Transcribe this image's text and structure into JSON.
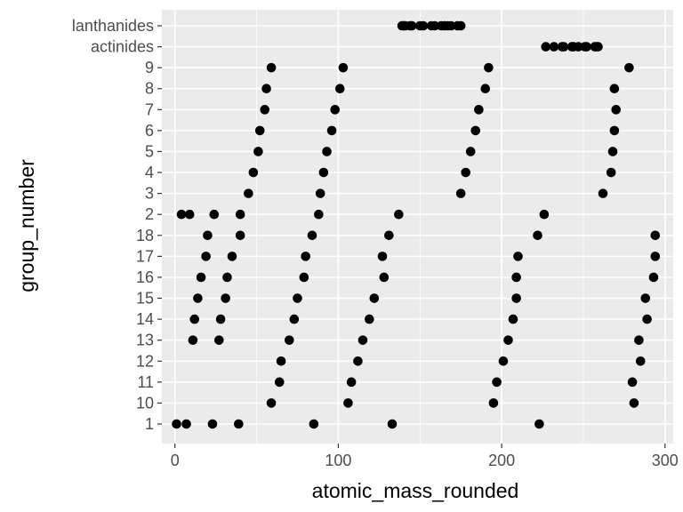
{
  "chart_data": {
    "type": "scatter",
    "xlabel": "atomic_mass_rounded",
    "ylabel": "group_number",
    "xlim": [
      -8,
      305
    ],
    "x_ticks": [
      0,
      100,
      200,
      300
    ],
    "x_tick_labels": [
      "0",
      "100",
      "200",
      "300"
    ],
    "x_minor": [
      50,
      150,
      250
    ],
    "categories": [
      "1",
      "10",
      "11",
      "12",
      "13",
      "14",
      "15",
      "16",
      "17",
      "18",
      "2",
      "3",
      "4",
      "5",
      "6",
      "7",
      "8",
      "9",
      "actinides",
      "lanthanides"
    ],
    "grid": true,
    "points": [
      {
        "x": 1,
        "y": "1"
      },
      {
        "x": 7,
        "y": "1"
      },
      {
        "x": 23,
        "y": "1"
      },
      {
        "x": 39,
        "y": "1"
      },
      {
        "x": 85,
        "y": "1"
      },
      {
        "x": 133,
        "y": "1"
      },
      {
        "x": 223,
        "y": "1"
      },
      {
        "x": 4,
        "y": "2"
      },
      {
        "x": 9,
        "y": "2"
      },
      {
        "x": 24,
        "y": "2"
      },
      {
        "x": 40,
        "y": "2"
      },
      {
        "x": 88,
        "y": "2"
      },
      {
        "x": 137,
        "y": "2"
      },
      {
        "x": 226,
        "y": "2"
      },
      {
        "x": 45,
        "y": "3"
      },
      {
        "x": 89,
        "y": "3"
      },
      {
        "x": 175,
        "y": "3"
      },
      {
        "x": 262,
        "y": "3"
      },
      {
        "x": 48,
        "y": "4"
      },
      {
        "x": 91,
        "y": "4"
      },
      {
        "x": 178,
        "y": "4"
      },
      {
        "x": 267,
        "y": "4"
      },
      {
        "x": 51,
        "y": "5"
      },
      {
        "x": 93,
        "y": "5"
      },
      {
        "x": 181,
        "y": "5"
      },
      {
        "x": 268,
        "y": "5"
      },
      {
        "x": 52,
        "y": "6"
      },
      {
        "x": 96,
        "y": "6"
      },
      {
        "x": 184,
        "y": "6"
      },
      {
        "x": 269,
        "y": "6"
      },
      {
        "x": 55,
        "y": "7"
      },
      {
        "x": 98,
        "y": "7"
      },
      {
        "x": 186,
        "y": "7"
      },
      {
        "x": 270,
        "y": "7"
      },
      {
        "x": 56,
        "y": "8"
      },
      {
        "x": 101,
        "y": "8"
      },
      {
        "x": 190,
        "y": "8"
      },
      {
        "x": 269,
        "y": "8"
      },
      {
        "x": 59,
        "y": "9"
      },
      {
        "x": 103,
        "y": "9"
      },
      {
        "x": 192,
        "y": "9"
      },
      {
        "x": 278,
        "y": "9"
      },
      {
        "x": 59,
        "y": "10"
      },
      {
        "x": 106,
        "y": "10"
      },
      {
        "x": 195,
        "y": "10"
      },
      {
        "x": 281,
        "y": "10"
      },
      {
        "x": 64,
        "y": "11"
      },
      {
        "x": 108,
        "y": "11"
      },
      {
        "x": 197,
        "y": "11"
      },
      {
        "x": 280,
        "y": "11"
      },
      {
        "x": 65,
        "y": "12"
      },
      {
        "x": 112,
        "y": "12"
      },
      {
        "x": 201,
        "y": "12"
      },
      {
        "x": 285,
        "y": "12"
      },
      {
        "x": 11,
        "y": "13"
      },
      {
        "x": 27,
        "y": "13"
      },
      {
        "x": 70,
        "y": "13"
      },
      {
        "x": 115,
        "y": "13"
      },
      {
        "x": 204,
        "y": "13"
      },
      {
        "x": 284,
        "y": "13"
      },
      {
        "x": 12,
        "y": "14"
      },
      {
        "x": 28,
        "y": "14"
      },
      {
        "x": 73,
        "y": "14"
      },
      {
        "x": 119,
        "y": "14"
      },
      {
        "x": 207,
        "y": "14"
      },
      {
        "x": 289,
        "y": "14"
      },
      {
        "x": 14,
        "y": "15"
      },
      {
        "x": 31,
        "y": "15"
      },
      {
        "x": 75,
        "y": "15"
      },
      {
        "x": 122,
        "y": "15"
      },
      {
        "x": 209,
        "y": "15"
      },
      {
        "x": 288,
        "y": "15"
      },
      {
        "x": 16,
        "y": "16"
      },
      {
        "x": 32,
        "y": "16"
      },
      {
        "x": 79,
        "y": "16"
      },
      {
        "x": 128,
        "y": "16"
      },
      {
        "x": 209,
        "y": "16"
      },
      {
        "x": 293,
        "y": "16"
      },
      {
        "x": 19,
        "y": "17"
      },
      {
        "x": 35,
        "y": "17"
      },
      {
        "x": 80,
        "y": "17"
      },
      {
        "x": 127,
        "y": "17"
      },
      {
        "x": 210,
        "y": "17"
      },
      {
        "x": 294,
        "y": "17"
      },
      {
        "x": 20,
        "y": "18"
      },
      {
        "x": 40,
        "y": "18"
      },
      {
        "x": 84,
        "y": "18"
      },
      {
        "x": 131,
        "y": "18"
      },
      {
        "x": 222,
        "y": "18"
      },
      {
        "x": 294,
        "y": "18"
      },
      {
        "x": 227,
        "y": "actinides"
      },
      {
        "x": 232,
        "y": "actinides"
      },
      {
        "x": 238,
        "y": "actinides"
      },
      {
        "x": 237,
        "y": "actinides"
      },
      {
        "x": 244,
        "y": "actinides"
      },
      {
        "x": 243,
        "y": "actinides"
      },
      {
        "x": 247,
        "y": "actinides"
      },
      {
        "x": 251,
        "y": "actinides"
      },
      {
        "x": 252,
        "y": "actinides"
      },
      {
        "x": 257,
        "y": "actinides"
      },
      {
        "x": 258,
        "y": "actinides"
      },
      {
        "x": 259,
        "y": "actinides"
      },
      {
        "x": 139,
        "y": "lanthanides"
      },
      {
        "x": 140,
        "y": "lanthanides"
      },
      {
        "x": 141,
        "y": "lanthanides"
      },
      {
        "x": 144,
        "y": "lanthanides"
      },
      {
        "x": 145,
        "y": "lanthanides"
      },
      {
        "x": 150,
        "y": "lanthanides"
      },
      {
        "x": 152,
        "y": "lanthanides"
      },
      {
        "x": 157,
        "y": "lanthanides"
      },
      {
        "x": 159,
        "y": "lanthanides"
      },
      {
        "x": 163,
        "y": "lanthanides"
      },
      {
        "x": 165,
        "y": "lanthanides"
      },
      {
        "x": 167,
        "y": "lanthanides"
      },
      {
        "x": 169,
        "y": "lanthanides"
      },
      {
        "x": 173,
        "y": "lanthanides"
      },
      {
        "x": 175,
        "y": "lanthanides"
      }
    ]
  },
  "colors": {
    "panel": "#ebebeb",
    "grid": "#ffffff",
    "point": "#000000",
    "tick_label": "#4d4d4d",
    "axis_title": "#000000"
  }
}
